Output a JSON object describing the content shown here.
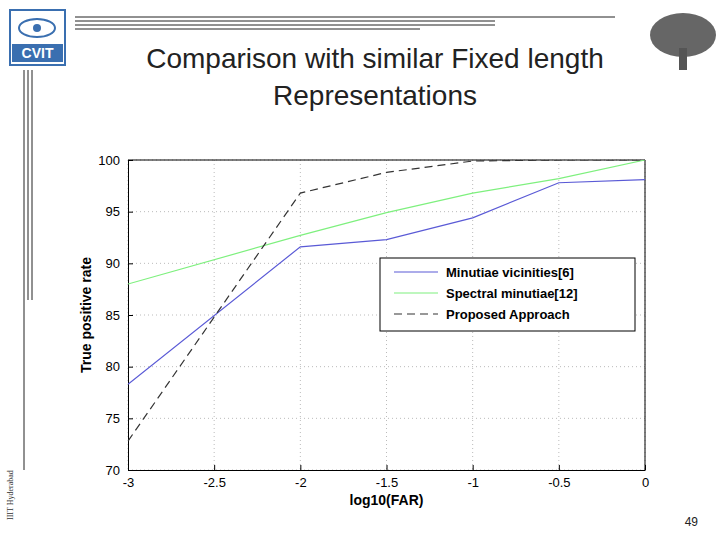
{
  "chart_data": {
    "type": "line",
    "title": "Comparison with similar Fixed length Representations",
    "xlabel": "log10(FAR)",
    "ylabel": "True positive rate",
    "x": [
      -3,
      -2,
      -1.5,
      -1,
      -0.5,
      0
    ],
    "series": [
      {
        "name": "Minutiae vicinities[6]",
        "color": "#5a5ad6",
        "line_style": "solid",
        "values": [
          78.3,
          91.6,
          92.3,
          94.4,
          97.8,
          98.1
        ]
      },
      {
        "name": "Spectral minutiae[12]",
        "color": "#7ef07e",
        "line_style": "solid",
        "values": [
          88,
          92.7,
          94.9,
          96.8,
          98.2,
          100
        ]
      },
      {
        "name": "Proposed Approach",
        "color": "#333333",
        "line_style": "dashed",
        "values": [
          72.8,
          96.8,
          98.8,
          99.9,
          100,
          100
        ]
      }
    ],
    "xlim": [
      -3,
      0
    ],
    "xticks": [
      -3,
      -2.5,
      -2,
      -1.5,
      -1,
      -0.5,
      0
    ],
    "ylim": [
      70,
      100
    ],
    "yticks": [
      70,
      75,
      80,
      85,
      90,
      95,
      100
    ],
    "grid": true,
    "legend": "upper right"
  },
  "slide": {
    "logo": "CVIT",
    "side_text": "IIIT Hyderabad",
    "page_number": "49"
  }
}
